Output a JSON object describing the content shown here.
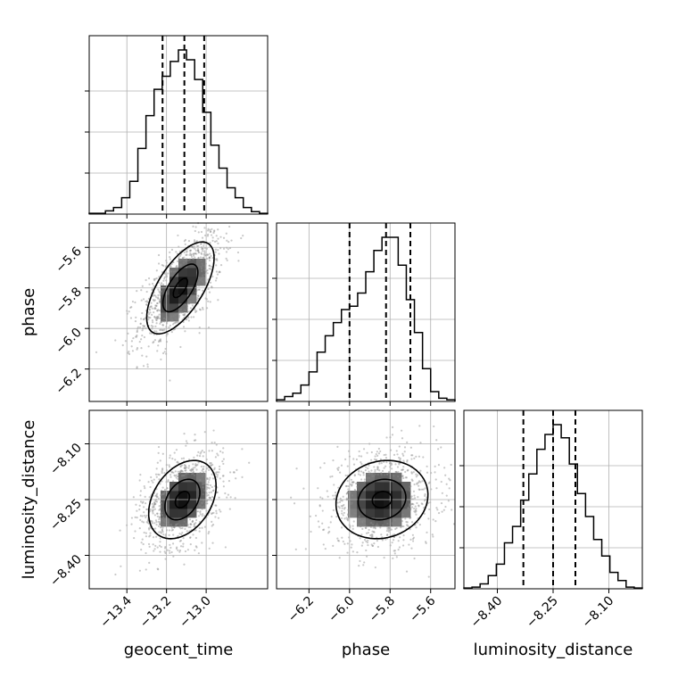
{
  "chart_data": {
    "type": "corner",
    "parameters": [
      {
        "name": "geocent_time",
        "range": [
          -13.59,
          -12.69
        ],
        "ticks": [
          -13.4,
          -13.2,
          -13.0
        ],
        "tick_labels": [
          "−13.4",
          "−13.2",
          "−13.0"
        ],
        "quantiles": [
          -13.22,
          -13.11,
          -13.01
        ],
        "histogram": [
          0.5,
          0.5,
          2,
          4,
          10,
          20,
          40,
          60,
          76,
          84,
          93,
          100,
          94,
          82,
          62,
          42,
          28,
          16,
          10,
          4,
          1.5,
          0.5
        ]
      },
      {
        "name": "phase",
        "range": [
          -6.36,
          -5.48
        ],
        "ticks": [
          -6.2,
          -6.0,
          -5.8,
          -5.6
        ],
        "tick_labels": [
          "−6.2",
          "−6.0",
          "−5.8",
          "−5.6"
        ],
        "quantiles": [
          -6.0,
          -5.82,
          -5.7
        ],
        "histogram": [
          1,
          3,
          5,
          10,
          18,
          30,
          40,
          48,
          56,
          58,
          66,
          79,
          92,
          100,
          100,
          83,
          62,
          42,
          20,
          6,
          2,
          1
        ]
      },
      {
        "name": "luminosity_distance",
        "range": [
          -8.49,
          -8.01
        ],
        "ticks": [
          -8.4,
          -8.25,
          -8.1
        ],
        "tick_labels": [
          "−8.40",
          "−8.25",
          "−8.10"
        ],
        "quantiles": [
          -8.33,
          -8.25,
          -8.19
        ],
        "histogram": [
          0.5,
          1,
          3,
          8,
          15,
          28,
          38,
          54,
          70,
          85,
          94,
          100,
          92,
          76,
          58,
          44,
          30,
          20,
          10,
          5,
          1,
          0.5
        ]
      }
    ],
    "pairs": [
      {
        "x": "geocent_time",
        "y": "phase",
        "mean": [
          -13.13,
          -5.8
        ],
        "std": [
          0.105,
          0.14
        ],
        "correlation": 0.65
      },
      {
        "x": "geocent_time",
        "y": "luminosity_distance",
        "mean": [
          -13.12,
          -8.25
        ],
        "std": [
          0.105,
          0.065
        ],
        "correlation": 0.35
      },
      {
        "x": "phase",
        "y": "luminosity_distance",
        "mean": [
          -5.84,
          -8.25
        ],
        "std": [
          0.14,
          0.065
        ],
        "correlation": 0.12
      }
    ],
    "contour_levels": 3,
    "grid": true
  }
}
